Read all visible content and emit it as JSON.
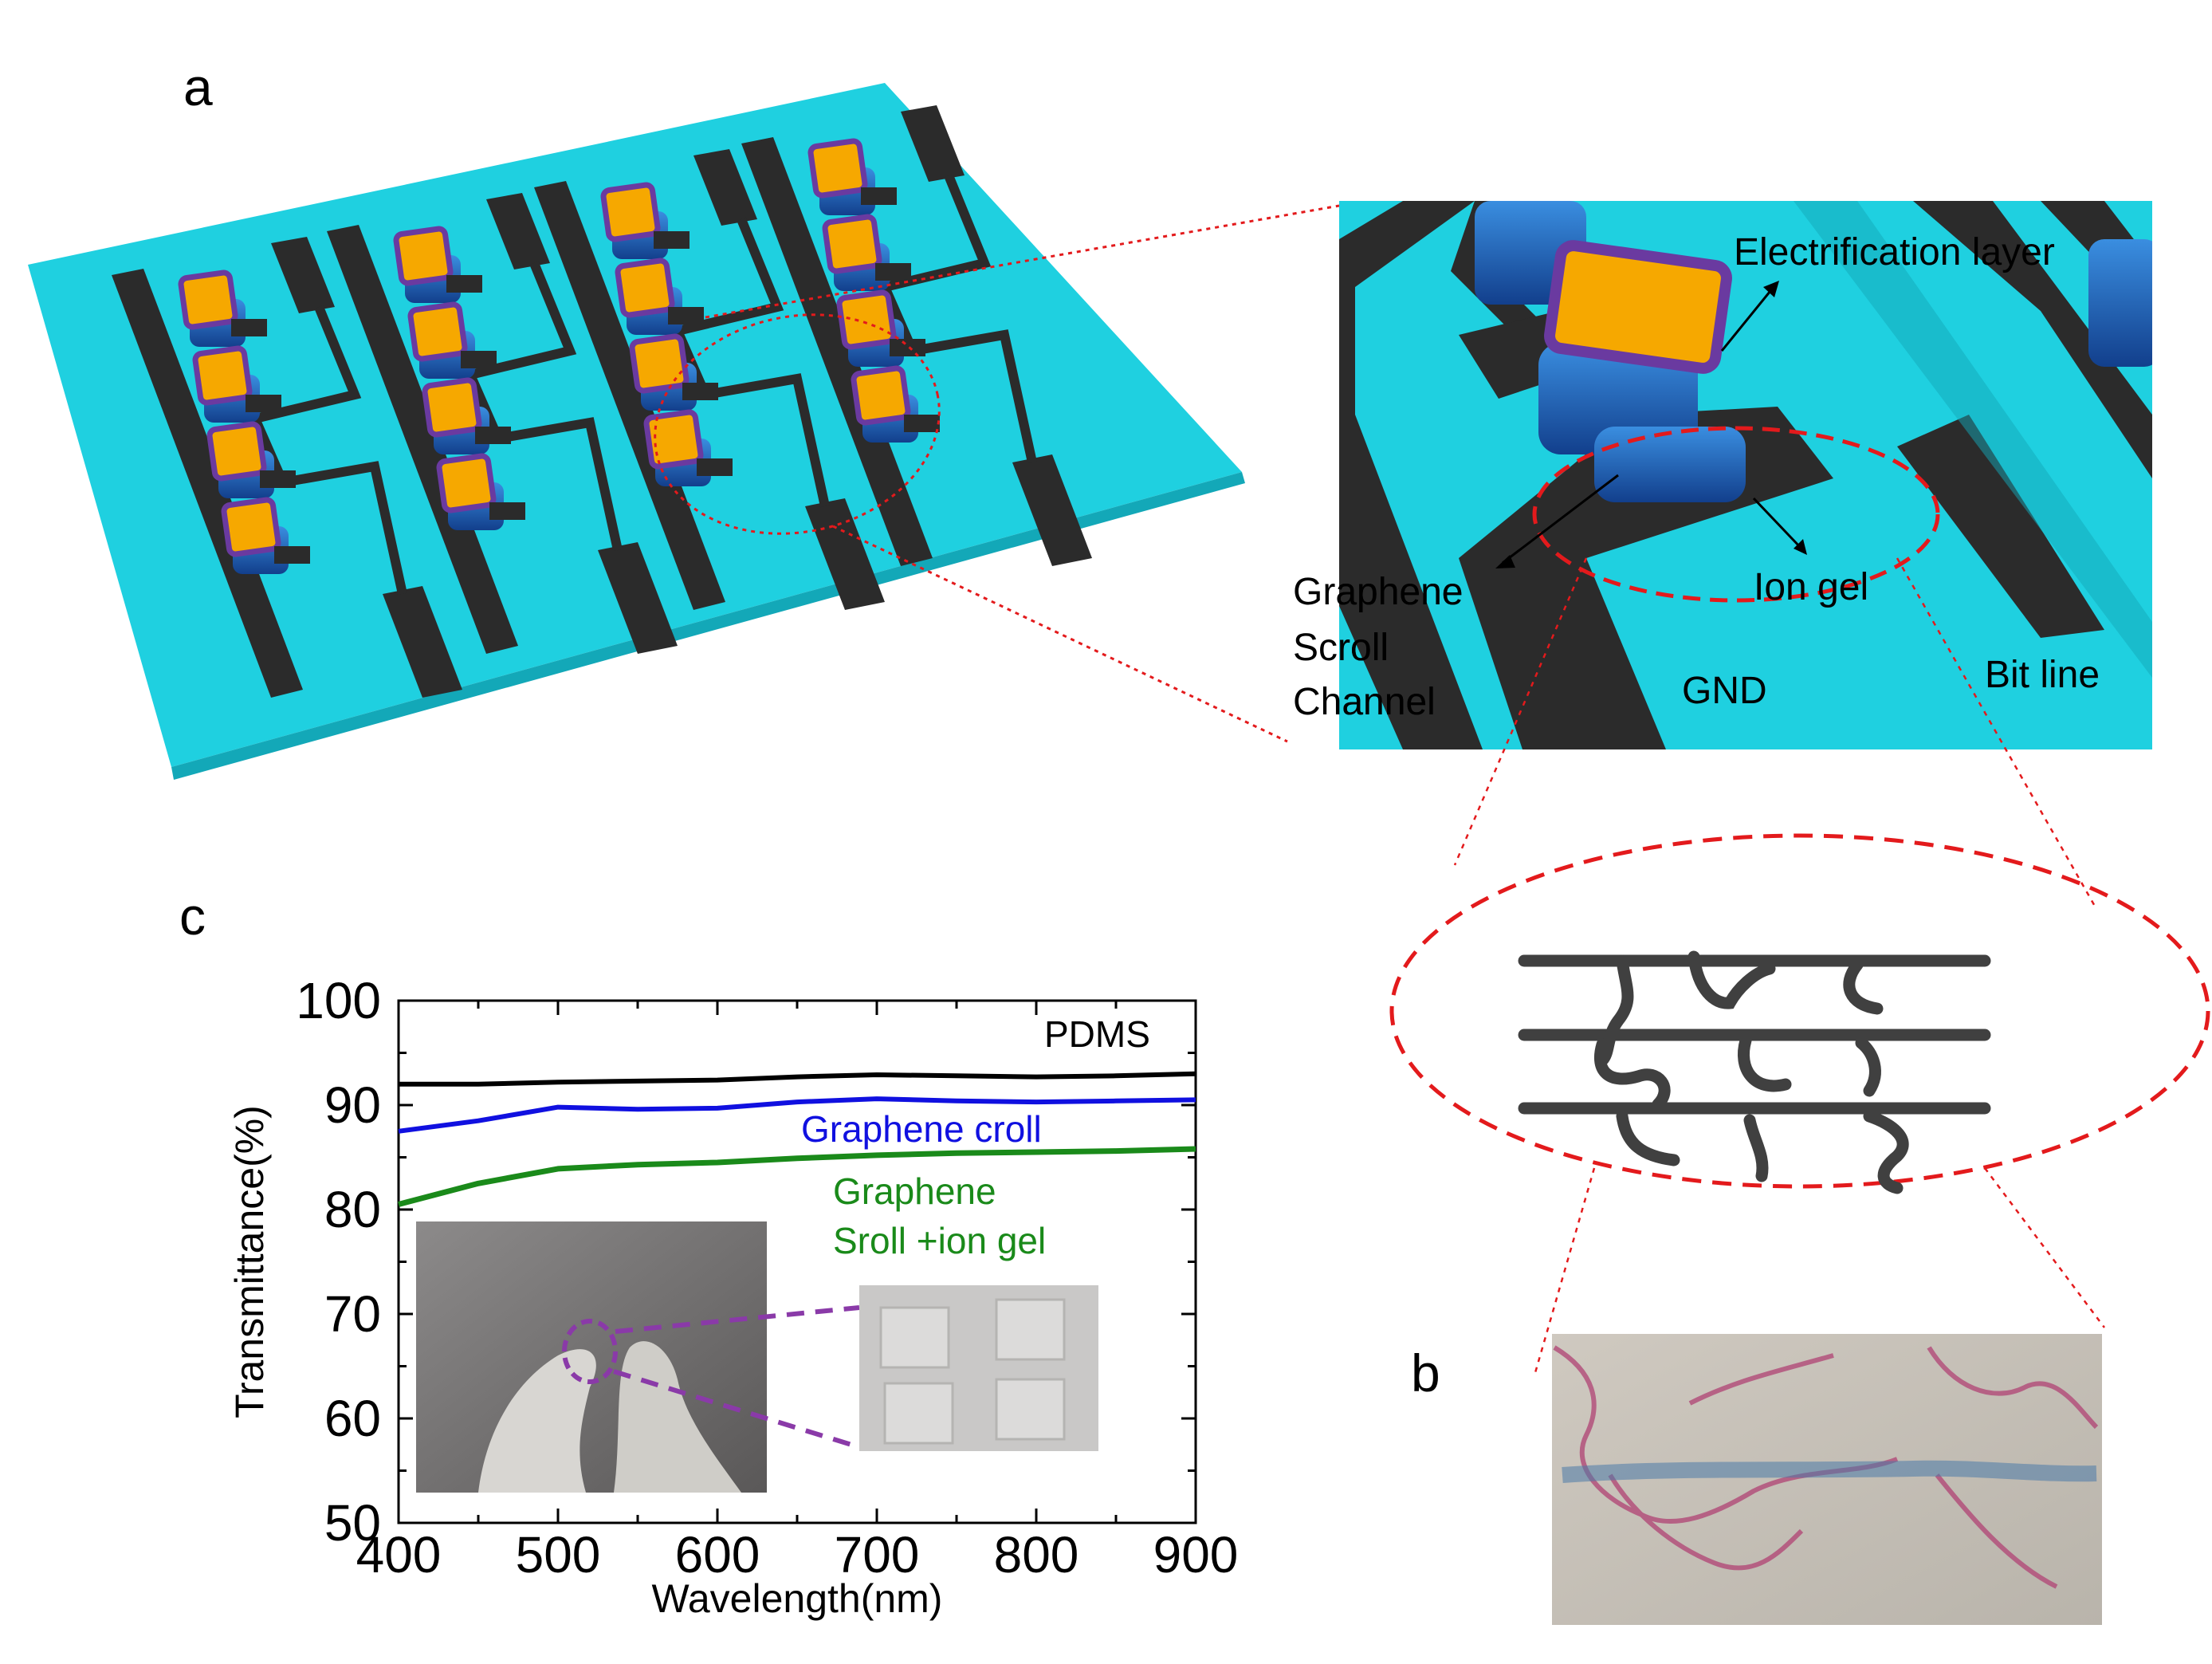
{
  "panels": {
    "a": "a",
    "b": "b",
    "c": "c"
  },
  "zoom_labels": {
    "electrification": "Electrification layer",
    "graphene_1": "Graphene",
    "graphene_2": "Scroll",
    "graphene_3": "Channel",
    "ion_gel": "Ion gel",
    "gnd": "GND",
    "bit_line": "Bit line"
  },
  "colors": {
    "substrate": "#1fd0e0",
    "electrode": "#2b2b2b",
    "pad": "#f6a800",
    "pad_border": "#6a3aa0",
    "gel": "#1d5fb8",
    "dash_red": "#e31a1c",
    "scroll": "#404040",
    "inset_purple": "#8a3aa8"
  },
  "chart_data": {
    "type": "line",
    "xlabel": "Wavelength(nm)",
    "ylabel": "Transmittance(%)",
    "xlim": [
      400,
      900
    ],
    "ylim": [
      50,
      100
    ],
    "xticks": [
      "400",
      "500",
      "600",
      "700",
      "800",
      "900"
    ],
    "yticks": [
      "50",
      "60",
      "70",
      "80",
      "90",
      "100"
    ],
    "grid": false,
    "x": [
      400,
      450,
      500,
      550,
      600,
      650,
      700,
      750,
      800,
      850,
      900
    ],
    "series": [
      {
        "name": "PDMS",
        "color": "#000000",
        "values": [
          92.0,
          92.0,
          92.2,
          92.3,
          92.4,
          92.7,
          92.9,
          92.8,
          92.7,
          92.8,
          93.0
        ]
      },
      {
        "name": "Graphene croll",
        "color": "#1010e0",
        "values": [
          87.5,
          88.5,
          89.8,
          89.6,
          89.7,
          90.3,
          90.6,
          90.4,
          90.3,
          90.4,
          90.5
        ]
      },
      {
        "name_lines": [
          "Graphene",
          "Sroll +ion gel"
        ],
        "color": "#1a8a1a",
        "values": [
          80.5,
          82.5,
          83.9,
          84.3,
          84.5,
          84.9,
          85.2,
          85.4,
          85.5,
          85.6,
          85.8
        ]
      }
    ]
  }
}
